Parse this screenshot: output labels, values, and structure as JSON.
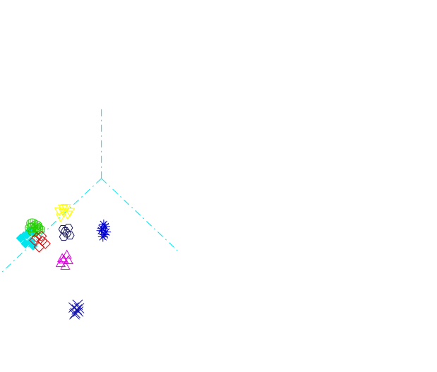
{
  "chart_data": {
    "type": "scatter",
    "title": "",
    "xlabel": "",
    "ylabel": "",
    "grid": false,
    "legend": "none",
    "xlim": [
      -13.2,
      43.7
    ],
    "ylim": [
      -28.2,
      26.0
    ],
    "axes": {
      "style": "dashed",
      "color": "#00e5ee",
      "origin": [
        0,
        0
      ],
      "rays": [
        {
          "name": "axis-up",
          "end": [
            0,
            10.5
          ]
        },
        {
          "name": "axis-lower-right",
          "end": [
            9.9,
            -10.5
          ]
        },
        {
          "name": "axis-lower-left",
          "end": [
            -13.1,
            -13.8
          ]
        }
      ]
    },
    "series": [
      {
        "marker": "diamond-filled",
        "color": "#00e5ee",
        "center": [
          -9.5,
          -8.7
        ],
        "points": [
          [
            -10.5,
            -8.7
          ],
          [
            -9.7,
            -8.2
          ],
          [
            -9.2,
            -9.2
          ],
          [
            -8.7,
            -8.0
          ],
          [
            -9.9,
            -9.5
          ],
          [
            -8.9,
            -9.8
          ],
          [
            -10.1,
            -8.4
          ],
          [
            -9.4,
            -7.7
          ]
        ]
      },
      {
        "marker": "ellipse-hatched",
        "color": "#22cc00",
        "center": [
          -8.8,
          -7.2
        ],
        "points": [
          [
            -9.2,
            -7.2
          ],
          [
            -8.5,
            -6.8
          ],
          [
            -8.8,
            -7.8
          ],
          [
            -8.1,
            -7.4
          ],
          [
            -9.0,
            -6.5
          ],
          [
            -8.4,
            -7.1
          ]
        ]
      },
      {
        "marker": "diamond",
        "color": "#e00000",
        "center": [
          -8.0,
          -9.2
        ],
        "points": [
          [
            -8.7,
            -9.0
          ],
          [
            -7.8,
            -8.4
          ],
          [
            -7.3,
            -9.5
          ],
          [
            -8.1,
            -10.0
          ],
          [
            -7.7,
            -9.1
          ],
          [
            -8.4,
            -8.6
          ]
        ]
      },
      {
        "marker": "triangle-down",
        "color": "#ffff00",
        "center": [
          -5.0,
          -5.0
        ],
        "points": [
          [
            -5.5,
            -4.7
          ],
          [
            -4.6,
            -4.2
          ],
          [
            -4.4,
            -5.2
          ],
          [
            -5.3,
            -5.6
          ],
          [
            -4.9,
            -4.9
          ],
          [
            -5.0,
            -4.3
          ],
          [
            -4.1,
            -4.8
          ]
        ]
      },
      {
        "marker": "hexagon",
        "color": "#1a1a5a",
        "center": [
          -4.6,
          -7.7
        ],
        "points": [
          [
            -5.0,
            -7.4
          ],
          [
            -4.3,
            -7.2
          ],
          [
            -4.5,
            -8.0
          ],
          [
            -4.9,
            -8.5
          ],
          [
            -4.1,
            -8.3
          ],
          [
            -4.7,
            -7.7
          ]
        ]
      },
      {
        "marker": "asterisk",
        "color": "#0000cc",
        "center": [
          0.3,
          -7.6
        ],
        "points": [
          [
            0.1,
            -7.3
          ],
          [
            0.5,
            -7.0
          ],
          [
            0.4,
            -8.2
          ],
          [
            0.0,
            -7.6
          ],
          [
            0.6,
            -7.8
          ],
          [
            0.2,
            -8.5
          ],
          [
            0.3,
            -6.7
          ]
        ]
      },
      {
        "marker": "triangle",
        "color": "#dd00dd",
        "center": [
          -4.8,
          -12.0
        ],
        "points": [
          [
            -5.1,
            -11.7
          ],
          [
            -4.5,
            -11.2
          ],
          [
            -4.3,
            -12.0
          ],
          [
            -5.3,
            -12.4
          ],
          [
            -4.7,
            -12.8
          ],
          [
            -4.9,
            -11.9
          ]
        ]
      },
      {
        "marker": "cross",
        "color": "#1010aa",
        "center": [
          -3.3,
          -19.2
        ],
        "points": [
          [
            -3.6,
            -18.8
          ],
          [
            -3.1,
            -18.4
          ],
          [
            -3.0,
            -19.4
          ],
          [
            -3.5,
            -19.8
          ],
          [
            -3.2,
            -19.1
          ],
          [
            -3.4,
            -19.6
          ],
          [
            -2.9,
            -18.9
          ]
        ]
      }
    ]
  }
}
